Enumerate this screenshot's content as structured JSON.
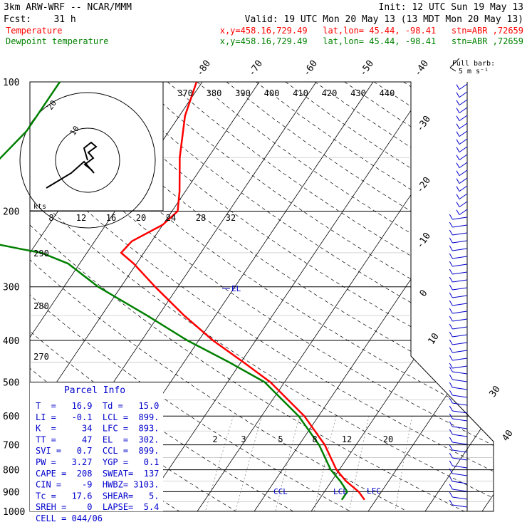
{
  "header": {
    "model": "3km ARW-WRF -- NCAR/MMM",
    "init": "Init: 12 UTC Sun 19 May 13",
    "fcst": "Fcst:    31 h",
    "valid": "Valid: 19 UTC Mon 20 May 13 (13 MDT Mon 20 May 13)",
    "temp_label": "Temperature",
    "dew_label": "Dewpoint temperature",
    "temp_loc": "x,y=458.16,729.49   lat,lon= 45.44, -98.41   stn=ABR ,72659",
    "dew_loc": "x,y=458.16,729.49   lat,lon= 45.44, -98.41   stn=ABR ,72659"
  },
  "colors": {
    "temperature": "#ff0000",
    "dewpoint": "#008000",
    "el_label": "#0000cc",
    "parcel_title": "#0000cc"
  },
  "wind_key": {
    "line1": "Full barb:",
    "line2": "5 m s⁻¹"
  },
  "hodograph": {
    "units": "kts",
    "ring_labels": [
      "10",
      "20"
    ]
  },
  "markers": {
    "el": "EL",
    "ccl": "CCL",
    "lcl": "LCL",
    "lfc": "LFC"
  },
  "parcel_info": {
    "title": "Parcel Info",
    "rows": [
      "T  =   16.9  Td =   15.0",
      "LI =   -0.1  LCL =  899.",
      "K  =     34  LFC =  893.",
      "TT =     47  EL  =  302.",
      "SVI =   0.7  CCL =  899.",
      "PW =   3.27  YGP =   0.1",
      "CAPE =  208  SWEAT=  137",
      "CIN =    -9  HWBZ= 3103.",
      "Tc =   17.6  SHEAR=   5.",
      "SREH =    0  LAPSE=  5.4",
      "CELL = 044/06"
    ]
  },
  "chart_data": {
    "type": "line",
    "title": "3km ARW-WRF -- NCAR/MMM",
    "xlabel": "",
    "ylabel": "",
    "y_axis": "pressure (hPa), log scale",
    "pressure_ticks": [
      100,
      200,
      300,
      400,
      500,
      600,
      700,
      800,
      900,
      1000
    ],
    "isotherm_labels": [
      "-80",
      "-70",
      "-60",
      "-50",
      "-40",
      "-30",
      "-20",
      "-10",
      "0",
      "10",
      "30",
      "40"
    ],
    "theta_labels": [
      "370",
      "380",
      "390",
      "400",
      "410",
      "420",
      "430",
      "440"
    ],
    "theta_left_labels": [
      "290",
      "280",
      "270"
    ],
    "mixing_ratio_upper_labels": [
      "8",
      "12",
      "16",
      "20",
      "24",
      "28",
      "32"
    ],
    "mixing_ratio_lower_labels": [
      "2",
      "3",
      "5",
      "8",
      "12",
      "20"
    ],
    "series": [
      {
        "name": "Temperature",
        "color": "#ff0000",
        "points": [
          {
            "p": 100,
            "t": -61
          },
          {
            "p": 120,
            "t": -59
          },
          {
            "p": 150,
            "t": -55
          },
          {
            "p": 180,
            "t": -51
          },
          {
            "p": 200,
            "t": -49
          },
          {
            "p": 215,
            "t": -50
          },
          {
            "p": 235,
            "t": -53.5
          },
          {
            "p": 250,
            "t": -54
          },
          {
            "p": 265,
            "t": -50.5
          },
          {
            "p": 300,
            "t": -44
          },
          {
            "p": 350,
            "t": -35.5
          },
          {
            "p": 400,
            "t": -27.5
          },
          {
            "p": 450,
            "t": -19.5
          },
          {
            "p": 500,
            "t": -12.5
          },
          {
            "p": 600,
            "t": -2.5
          },
          {
            "p": 700,
            "t": 4.5
          },
          {
            "p": 800,
            "t": 9.5
          },
          {
            "p": 850,
            "t": 12.5
          },
          {
            "p": 900,
            "t": 16
          },
          {
            "p": 940,
            "t": 18
          }
        ]
      },
      {
        "name": "Dewpoint temperature",
        "color": "#008000",
        "points": [
          {
            "p": 100,
            "t": -85
          },
          {
            "p": 130,
            "t": -85
          },
          {
            "p": 160,
            "t": -87
          },
          {
            "p": 180,
            "t": -93
          },
          {
            "p": 200,
            "t": -100
          },
          {
            "p": 205,
            "t": -105
          },
          {
            "p": 220,
            "t": -92
          },
          {
            "p": 245,
            "t": -72
          },
          {
            "p": 250,
            "t": -68
          },
          {
            "p": 265,
            "t": -62
          },
          {
            "p": 300,
            "t": -54
          },
          {
            "p": 350,
            "t": -42
          },
          {
            "p": 400,
            "t": -32
          },
          {
            "p": 450,
            "t": -22
          },
          {
            "p": 500,
            "t": -13.5
          },
          {
            "p": 600,
            "t": -3.5
          },
          {
            "p": 700,
            "t": 3.5
          },
          {
            "p": 800,
            "t": 8.5
          },
          {
            "p": 850,
            "t": 11.5
          },
          {
            "p": 900,
            "t": 14
          },
          {
            "p": 940,
            "t": 14
          }
        ]
      }
    ]
  }
}
